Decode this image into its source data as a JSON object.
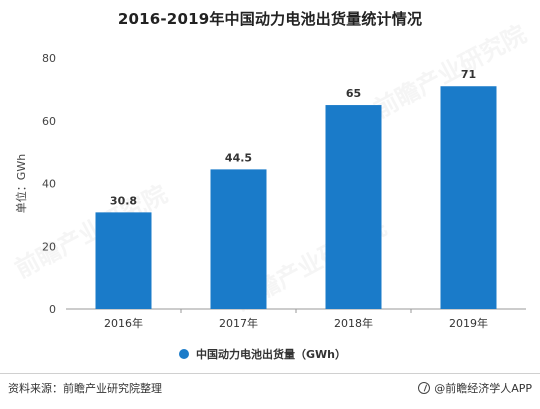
{
  "title": "2016-2019年中国动力电池出货量统计情况",
  "watermark_text": "前瞻产业研究院",
  "footer": {
    "source": "资料来源：前瞻产业研究院整理",
    "brand": "@前瞻经济学人APP"
  },
  "chart_data": {
    "type": "bar",
    "categories": [
      "2016年",
      "2017年",
      "2018年",
      "2019年"
    ],
    "values": [
      30.8,
      44.5,
      65,
      71
    ],
    "value_labels": [
      "30.8",
      "44.5",
      "65",
      "71"
    ],
    "title": "2016-2019年中国动力电池出货量统计情况",
    "xlabel": "",
    "ylabel": "单位：GWh",
    "ylim": [
      0,
      80
    ],
    "yticks": [
      0,
      20,
      40,
      60,
      80
    ],
    "series": [
      {
        "name": "中国动力电池出货量（GWh）",
        "values": [
          30.8,
          44.5,
          65,
          71
        ],
        "color": "#1a7bc9"
      }
    ],
    "legend_position": "bottom",
    "grid": false
  }
}
